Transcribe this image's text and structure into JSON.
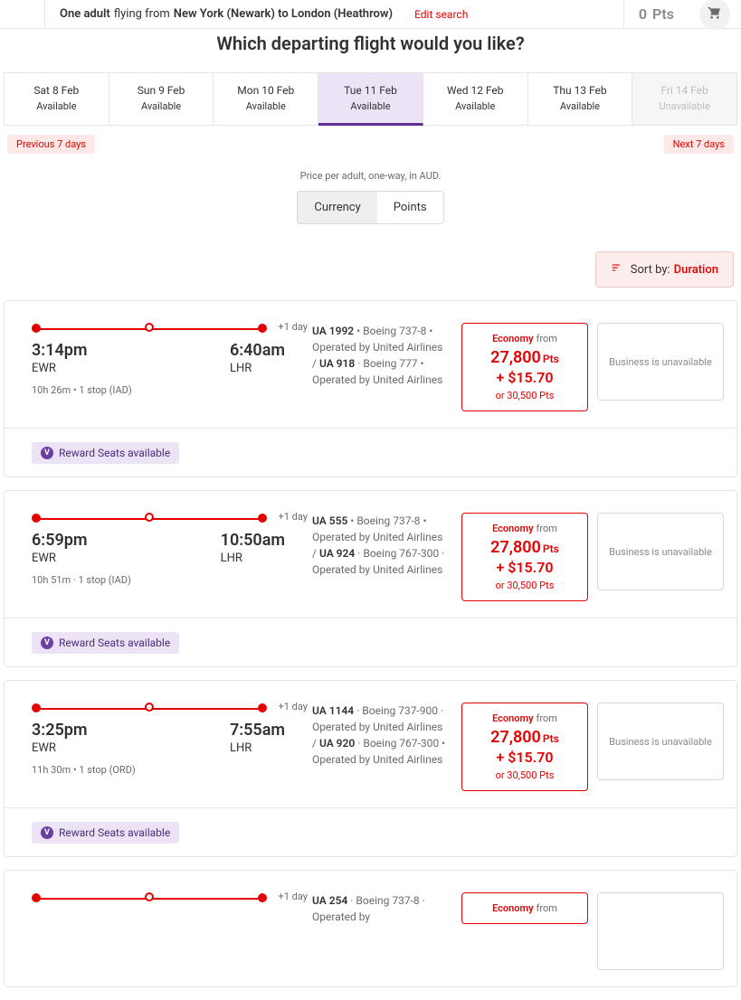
{
  "topbar": {
    "passengers": "One adult",
    "middle": "flying from",
    "route": "New York (Newark) to London (Heathrow)",
    "edit_label": "Edit search",
    "points_value": "0",
    "points_unit": "Pts"
  },
  "heading": "Which departing flight would you like?",
  "date_tabs": [
    {
      "date": "Sat 8 Feb",
      "status": "Available",
      "state": "normal"
    },
    {
      "date": "Sun 9 Feb",
      "status": "Available",
      "state": "normal"
    },
    {
      "date": "Mon 10 Feb",
      "status": "Available",
      "state": "normal"
    },
    {
      "date": "Tue 11 Feb",
      "status": "Available",
      "state": "selected"
    },
    {
      "date": "Wed 12 Feb",
      "status": "Available",
      "state": "normal"
    },
    {
      "date": "Thu 13 Feb",
      "status": "Available",
      "state": "normal"
    },
    {
      "date": "Fri 14 Feb",
      "status": "Unavailable",
      "state": "disabled"
    }
  ],
  "nav": {
    "prev": "Previous 7 days",
    "next": "Next 7 days"
  },
  "price_note": "Price per adult, one-way, in AUD.",
  "toggle": {
    "currency": "Currency",
    "points": "Points",
    "active": "points"
  },
  "sort": {
    "label": "Sort by:",
    "value": "Duration"
  },
  "reward_badge": "Reward Seats available",
  "colors": {
    "brand_red": "#e40000",
    "purple_bg": "#ece3f6",
    "purple_dark": "#5b2e8f",
    "grey_border": "#e5e5e5"
  },
  "flights": [
    {
      "plus_day": "+1 day",
      "dep_time": "3:14pm",
      "dep_code": "EWR",
      "arr_time": "6:40am",
      "arr_code": "LHR",
      "duration": "10h 26m  •  1 stop (IAD)",
      "details_parts": [
        {
          "t": "fno",
          "v": "UA 1992"
        },
        {
          "t": "txt",
          "v": " • Boeing 737-8 • Operated by United Airlines / "
        },
        {
          "t": "fno",
          "v": "UA 918"
        },
        {
          "t": "txt",
          "v": " · Boeing 777 • Operated by United Airlines"
        }
      ],
      "eco": {
        "label_class": "Economy",
        "label_from": "from",
        "pts": "27,800",
        "pts_unit": "Pts",
        "cash": "+ $15.70",
        "or": "or 30,500 Pts"
      },
      "biz": "Business is unavailable"
    },
    {
      "plus_day": "+1 day",
      "dep_time": "6:59pm",
      "dep_code": "EWR",
      "arr_time": "10:50am",
      "arr_code": "LHR",
      "duration": "10h 51m  ·  1 stop (IAD)",
      "details_parts": [
        {
          "t": "fno",
          "v": "UA 555"
        },
        {
          "t": "txt",
          "v": " • Boeing 737-8 • Operated by United Airlines / "
        },
        {
          "t": "fno",
          "v": "UA 924"
        },
        {
          "t": "txt",
          "v": " · Boeing 767-300  · Operated by United Airlines"
        }
      ],
      "eco": {
        "label_class": "Economy",
        "label_from": "from",
        "pts": "27,800",
        "pts_unit": "Pts",
        "cash": "+ $15.70",
        "or": "or 30,500 Pts"
      },
      "biz": "Business is unavailable"
    },
    {
      "plus_day": "+1 day",
      "dep_time": "3:25pm",
      "dep_code": "EWR",
      "arr_time": "7:55am",
      "arr_code": "LHR",
      "duration": "11h 30m  •  1 stop (ORD)",
      "details_parts": [
        {
          "t": "fno",
          "v": "UA 1144"
        },
        {
          "t": "txt",
          "v": " · Boeing 737-900  · Operated by United Airlines / "
        },
        {
          "t": "fno",
          "v": "UA 920"
        },
        {
          "t": "txt",
          "v": " · Boeing 767-300 • Operated by United Airlines"
        }
      ],
      "eco": {
        "label_class": "Economy",
        "label_from": "from",
        "pts": "27,800",
        "pts_unit": "Pts",
        "cash": "+ $15.70",
        "or": "or 30,500 Pts"
      },
      "biz": "Business is unavailable"
    },
    {
      "plus_day": "+1 day",
      "dep_time": "",
      "dep_code": "",
      "arr_time": "",
      "arr_code": "",
      "duration": "",
      "details_parts": [
        {
          "t": "fno",
          "v": "UA 254"
        },
        {
          "t": "txt",
          "v": " · Boeing 737-8  · Operated by"
        }
      ],
      "eco": {
        "label_class": "Economy",
        "label_from": "from",
        "pts": "",
        "pts_unit": "",
        "cash": "",
        "or": ""
      },
      "biz": ""
    }
  ]
}
